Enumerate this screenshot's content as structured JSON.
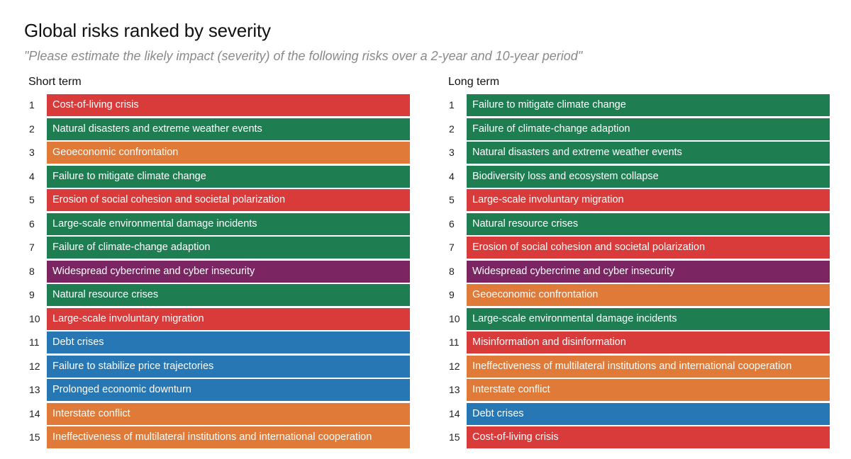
{
  "header": {
    "title": "Global risks ranked by severity",
    "subtitle": "\"Please estimate the likely impact (severity) of the following risks over a 2-year and 10-year period\""
  },
  "colors": {
    "societal": "#d93a3a",
    "environmental": "#1e7e52",
    "geopolitical": "#e07a38",
    "technological": "#7b2563",
    "economic": "#2677b4"
  },
  "chart_data": {
    "type": "table",
    "title": "Global risks ranked by severity",
    "subtitle": "\"Please estimate the likely impact (severity) of the following risks over a 2-year and 10-year period\"",
    "panels": [
      {
        "name": "Short term",
        "rows": [
          {
            "rank": "1",
            "label": "Cost-of-living crisis",
            "category": "societal"
          },
          {
            "rank": "2",
            "label": "Natural disasters and extreme weather events",
            "category": "environmental"
          },
          {
            "rank": "3",
            "label": "Geoeconomic confrontation",
            "category": "geopolitical"
          },
          {
            "rank": "4",
            "label": "Failure to mitigate climate change",
            "category": "environmental"
          },
          {
            "rank": "5",
            "label": "Erosion of social cohesion and societal polarization",
            "category": "societal"
          },
          {
            "rank": "6",
            "label": "Large-scale environmental damage incidents",
            "category": "environmental"
          },
          {
            "rank": "7",
            "label": "Failure of climate-change adaption",
            "category": "environmental"
          },
          {
            "rank": "8",
            "label": "Widespread cybercrime and cyber insecurity",
            "category": "technological"
          },
          {
            "rank": "9",
            "label": "Natural resource crises",
            "category": "environmental"
          },
          {
            "rank": "10",
            "label": "Large-scale involuntary migration",
            "category": "societal"
          },
          {
            "rank": "11",
            "label": "Debt crises",
            "category": "economic"
          },
          {
            "rank": "12",
            "label": "Failure to stabilize price trajectories",
            "category": "economic"
          },
          {
            "rank": "13",
            "label": "Prolonged economic downturn",
            "category": "economic"
          },
          {
            "rank": "14",
            "label": "Interstate conflict",
            "category": "geopolitical"
          },
          {
            "rank": "15",
            "label": "Ineffectiveness of multilateral institutions and international cooperation",
            "category": "geopolitical"
          }
        ]
      },
      {
        "name": "Long term",
        "rows": [
          {
            "rank": "1",
            "label": "Failure to mitigate climate change",
            "category": "environmental"
          },
          {
            "rank": "2",
            "label": "Failure of climate-change adaption",
            "category": "environmental"
          },
          {
            "rank": "3",
            "label": "Natural disasters and extreme weather events",
            "category": "environmental"
          },
          {
            "rank": "4",
            "label": "Biodiversity loss and ecosystem collapse",
            "category": "environmental"
          },
          {
            "rank": "5",
            "label": "Large-scale involuntary migration",
            "category": "societal"
          },
          {
            "rank": "6",
            "label": "Natural resource crises",
            "category": "environmental"
          },
          {
            "rank": "7",
            "label": "Erosion of social cohesion and societal polarization",
            "category": "societal"
          },
          {
            "rank": "8",
            "label": "Widespread cybercrime and cyber insecurity",
            "category": "technological"
          },
          {
            "rank": "9",
            "label": "Geoeconomic confrontation",
            "category": "geopolitical"
          },
          {
            "rank": "10",
            "label": "Large-scale environmental damage incidents",
            "category": "environmental"
          },
          {
            "rank": "11",
            "label": "Misinformation and disinformation",
            "category": "societal"
          },
          {
            "rank": "12",
            "label": "Ineffectiveness of multilateral institutions and international cooperation",
            "category": "geopolitical"
          },
          {
            "rank": "13",
            "label": "Interstate conflict",
            "category": "geopolitical"
          },
          {
            "rank": "14",
            "label": "Debt crises",
            "category": "economic"
          },
          {
            "rank": "15",
            "label": "Cost-of-living crisis",
            "category": "societal"
          }
        ]
      }
    ]
  }
}
